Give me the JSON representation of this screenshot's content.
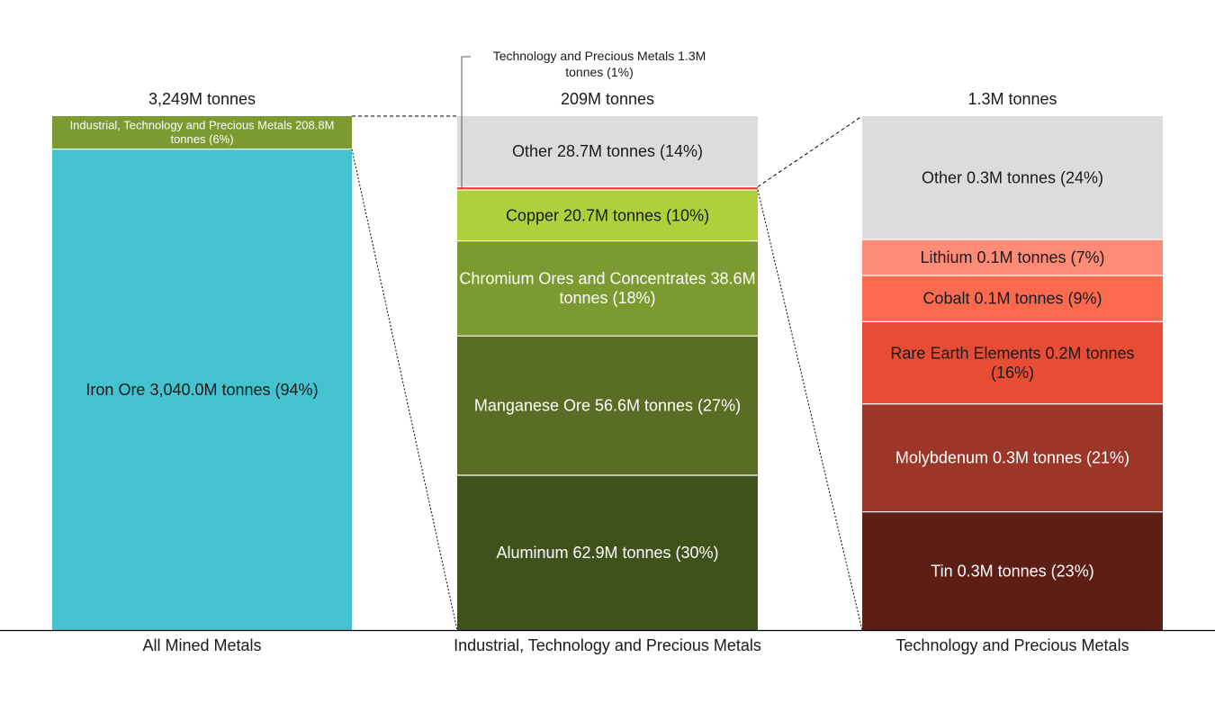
{
  "chart_data": {
    "type": "bar",
    "subtype": "stacked-bar-of-bar",
    "categories": [
      "All Mined Metals",
      "Industrial, Technology and Precious Metals",
      "Technology and Precious Metals"
    ],
    "totals": [
      "3,249M tonnes",
      "209M tonnes",
      "1.3M tonnes"
    ],
    "columns": [
      {
        "category": "All Mined Metals",
        "total_value": 3249,
        "segments_bottom_to_top": [
          {
            "name": "Iron Ore",
            "value": 3040.0,
            "label": "Iron Ore 3,040.0M tonnes (94%)",
            "color": "#44c2cf",
            "text_color": "#1a1a1a",
            "label_size": "large"
          },
          {
            "name": "Industrial, Technology and Precious Metals",
            "value": 208.8,
            "label": "Industrial, Technology and Precious Metals 208.8M tonnes (6%)",
            "color": "#7b9a2f",
            "text_color": "#ffffff",
            "label_size": "small"
          }
        ]
      },
      {
        "category": "Industrial, Technology and Precious Metals",
        "total_value": 209,
        "segments_bottom_to_top": [
          {
            "name": "Aluminum",
            "value": 62.9,
            "label": "Aluminum 62.9M tonnes (30%)",
            "color": "#3f521b",
            "text_color": "#ffffff",
            "label_size": "large"
          },
          {
            "name": "Manganese Ore",
            "value": 56.6,
            "label": "Manganese Ore 56.6M tonnes (27%)",
            "color": "#5a6d24",
            "text_color": "#ffffff",
            "label_size": "large"
          },
          {
            "name": "Chromium Ores and Concentrates",
            "value": 38.6,
            "label": "Chromium Ores and Concentrates 38.6M tonnes (18%)",
            "color": "#7b9a2f",
            "text_color": "#ffffff",
            "label_size": "large"
          },
          {
            "name": "Copper",
            "value": 20.7,
            "label": "Copper 20.7M tonnes (10%)",
            "color": "#add03b",
            "text_color": "#1a1a1a",
            "label_size": "large"
          },
          {
            "name": "Technology and Precious Metals",
            "value": 1.3,
            "label": "Technology and Precious Metals 1.3M tonnes (1%)",
            "color": "#e8483a",
            "text_color": "#1a1a1a",
            "label_size": "small",
            "callout": true
          },
          {
            "name": "Other",
            "value": 28.7,
            "label": "Other 28.7M tonnes (14%)",
            "color": "#dcdcdc",
            "text_color": "#1a1a1a",
            "label_size": "large"
          }
        ]
      },
      {
        "category": "Technology and Precious Metals",
        "total_value": 1.3,
        "segments_bottom_to_top": [
          {
            "name": "Tin",
            "value": 0.3,
            "percent": 23,
            "label": "Tin 0.3M tonnes (23%)",
            "color": "#5c1f16",
            "text_color": "#ffffff",
            "label_size": "large"
          },
          {
            "name": "Molybdenum",
            "value": 0.3,
            "percent": 21,
            "label": "Molybdenum 0.3M tonnes (21%)",
            "color": "#9c3628",
            "text_color": "#ffffff",
            "label_size": "large"
          },
          {
            "name": "Rare Earth Elements",
            "value": 0.2,
            "percent": 16,
            "label": "Rare Earth Elements 0.2M tonnes (16%)",
            "color": "#e84c34",
            "text_color": "#1a1a1a",
            "label_size": "large"
          },
          {
            "name": "Cobalt",
            "value": 0.1,
            "percent": 9,
            "label": "Cobalt 0.1M tonnes (9%)",
            "color": "#fb6a4f",
            "text_color": "#1a1a1a",
            "label_size": "large"
          },
          {
            "name": "Lithium",
            "value": 0.1,
            "percent": 7,
            "label": "Lithium 0.1M tonnes (7%)",
            "color": "#fc8c78",
            "text_color": "#1a1a1a",
            "label_size": "large"
          },
          {
            "name": "Other",
            "value": 0.3,
            "percent": 24,
            "label": "Other 0.3M tonnes (24%)",
            "color": "#dcdcdc",
            "text_color": "#1a1a1a",
            "label_size": "large"
          }
        ]
      }
    ],
    "title": "",
    "xlabel": "",
    "ylabel": "",
    "grid": false,
    "legend": "none"
  }
}
